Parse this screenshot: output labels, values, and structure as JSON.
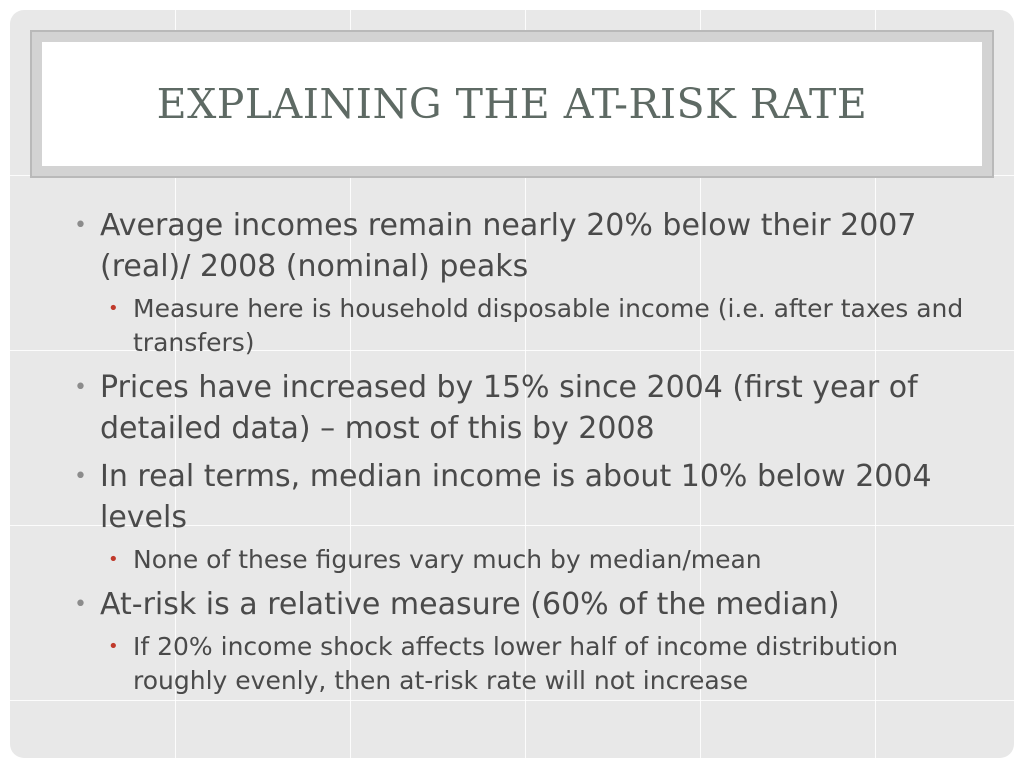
{
  "slide": {
    "title": "EXPLAINING THE AT-RISK RATE",
    "bullets": [
      {
        "text": "Average incomes remain nearly 20% below their 2007 (real)/ 2008 (nominal) peaks",
        "subs": [
          "Measure here is household disposable income (i.e. after taxes and transfers)"
        ]
      },
      {
        "text": "Prices have increased by 15% since 2004 (first year of detailed data) – most of this by 2008",
        "subs": []
      },
      {
        "text": "In real terms, median income is about 10% below 2004 levels",
        "subs": [
          "None of these figures vary much by median/mean"
        ]
      },
      {
        "text": "At-risk is a relative measure (60% of the median)",
        "subs": [
          "If 20% income shock affects lower half of income distribution roughly evenly, then at-risk rate will not increase"
        ]
      }
    ]
  }
}
